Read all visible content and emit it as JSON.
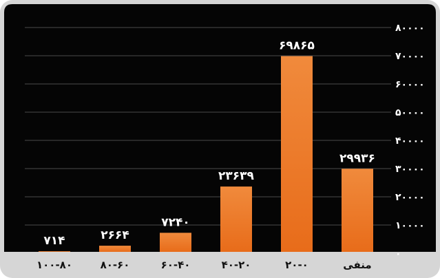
{
  "chart_data": {
    "type": "bar",
    "categories": [
      "۱۰۰-۸۰",
      "۸۰-۶۰",
      "۶۰-۴۰",
      "۴۰-۲۰",
      "۲۰-۰",
      "منفی"
    ],
    "values": [
      714,
      2664,
      7240,
      23639,
      69865,
      29936
    ],
    "value_labels": [
      "۷۱۴",
      "۲۶۶۴",
      "۷۲۴۰",
      "۲۳۶۳۹",
      "۶۹۸۶۵",
      "۲۹۹۳۶"
    ],
    "y_ticks": [
      {
        "value": 0,
        "label": "۰"
      },
      {
        "value": 10000,
        "label": "۱۰۰۰۰"
      },
      {
        "value": 20000,
        "label": "۲۰۰۰۰"
      },
      {
        "value": 30000,
        "label": "۳۰۰۰۰"
      },
      {
        "value": 40000,
        "label": "۴۰۰۰۰"
      },
      {
        "value": 50000,
        "label": "۵۰۰۰۰"
      },
      {
        "value": 60000,
        "label": "۶۰۰۰۰"
      },
      {
        "value": 70000,
        "label": "۷۰۰۰۰"
      },
      {
        "value": 80000,
        "label": "۸۰۰۰۰"
      }
    ],
    "ylim": [
      0,
      80000
    ],
    "y_axis_side": "right",
    "grid": true,
    "bar_color": "#f08a3c",
    "bar_color_dark": "#e86c1a",
    "title": "",
    "xlabel": "",
    "ylabel": ""
  }
}
